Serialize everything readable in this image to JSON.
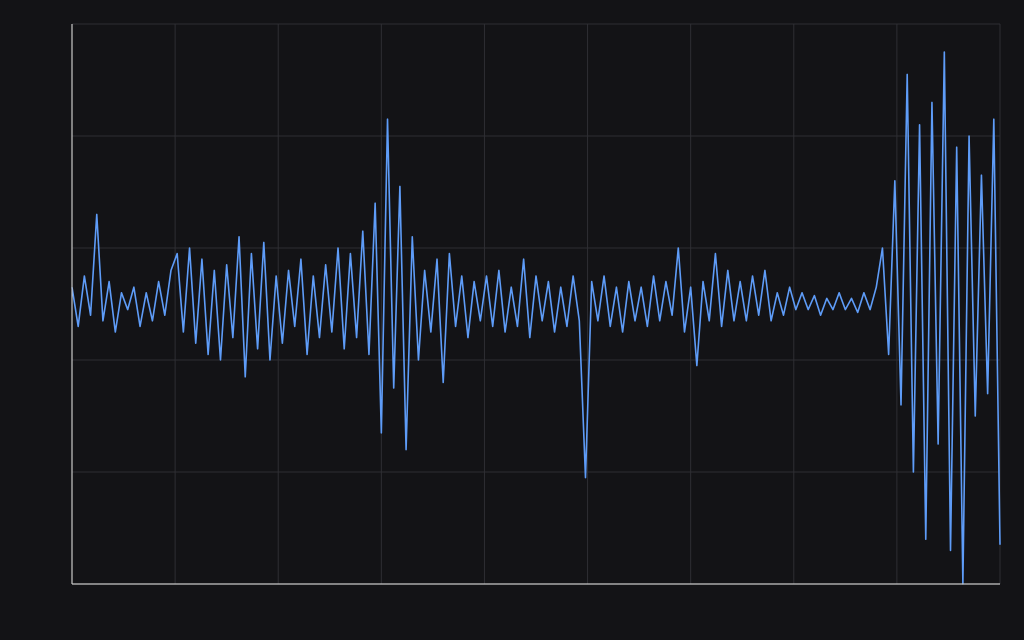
{
  "chart_data": {
    "type": "line",
    "x": [
      0,
      6,
      12,
      18,
      24,
      30,
      36,
      42,
      48,
      54,
      60,
      66,
      72,
      78,
      84,
      90,
      96,
      102,
      108,
      114,
      120,
      126,
      132,
      138,
      144,
      150,
      156,
      162,
      168,
      174,
      180,
      186,
      192,
      198,
      204,
      210,
      216,
      222,
      228,
      234,
      240,
      246,
      252,
      258,
      264,
      270,
      276,
      282,
      288,
      294,
      300,
      306,
      312,
      318,
      324,
      330,
      336,
      342,
      348,
      354,
      360,
      366,
      372,
      378,
      384,
      390,
      396,
      402,
      408,
      414,
      420,
      426,
      432,
      438,
      444,
      450,
      456,
      462,
      468,
      474,
      480,
      486,
      492,
      498,
      504,
      510,
      516,
      522,
      528,
      534,
      540,
      546,
      552,
      558,
      564,
      570,
      576,
      582,
      588,
      594,
      600,
      606,
      612,
      618,
      624,
      630,
      636,
      642,
      648,
      654,
      660,
      666,
      672,
      678,
      684,
      690,
      696,
      702,
      708,
      714,
      720,
      726,
      732,
      738,
      744,
      750,
      756,
      762,
      768,
      774,
      780,
      786,
      792,
      798,
      804,
      810,
      816,
      822,
      828,
      834,
      840,
      846,
      852,
      858,
      864,
      870,
      876,
      882,
      888,
      894,
      900
    ],
    "values": [
      0.3,
      -0.4,
      0.5,
      -0.2,
      1.6,
      -0.3,
      0.4,
      -0.5,
      0.2,
      -0.1,
      0.3,
      -0.4,
      0.2,
      -0.3,
      0.4,
      -0.2,
      0.6,
      0.9,
      -0.5,
      1.0,
      -0.7,
      0.8,
      -0.9,
      0.6,
      -1.0,
      0.7,
      -0.6,
      1.2,
      -1.3,
      0.9,
      -0.8,
      1.1,
      -1.0,
      0.5,
      -0.7,
      0.6,
      -0.4,
      0.8,
      -0.9,
      0.5,
      -0.6,
      0.7,
      -0.5,
      1.0,
      -0.8,
      0.9,
      -0.6,
      1.3,
      -0.9,
      1.8,
      -2.3,
      3.3,
      -1.5,
      2.1,
      -2.6,
      1.2,
      -1.0,
      0.6,
      -0.5,
      0.8,
      -1.4,
      0.9,
      -0.4,
      0.5,
      -0.6,
      0.4,
      -0.3,
      0.5,
      -0.4,
      0.6,
      -0.5,
      0.3,
      -0.4,
      0.8,
      -0.6,
      0.5,
      -0.3,
      0.4,
      -0.5,
      0.3,
      -0.4,
      0.5,
      -0.3,
      -3.1,
      0.4,
      -0.3,
      0.5,
      -0.4,
      0.3,
      -0.5,
      0.4,
      -0.3,
      0.3,
      -0.4,
      0.5,
      -0.3,
      0.4,
      -0.2,
      1.0,
      -0.5,
      0.3,
      -1.1,
      0.4,
      -0.3,
      0.9,
      -0.4,
      0.6,
      -0.3,
      0.4,
      -0.3,
      0.5,
      -0.2,
      0.6,
      -0.3,
      0.2,
      -0.2,
      0.3,
      -0.1,
      0.2,
      -0.1,
      0.15,
      -0.2,
      0.1,
      -0.1,
      0.2,
      -0.1,
      0.1,
      -0.15,
      0.2,
      -0.1,
      0.3,
      1.0,
      -0.9,
      2.2,
      -1.8,
      4.1,
      -3.0,
      3.2,
      -4.2,
      3.6,
      -2.5,
      4.5,
      -4.4,
      2.8,
      -5.0,
      3.0,
      -2.0,
      2.3,
      -1.6,
      3.3,
      -4.3
    ],
    "color": "#5e9cf8",
    "xlim": [
      0,
      900
    ],
    "xticks": [
      0,
      100,
      200,
      300,
      400,
      500,
      600,
      700,
      800,
      900
    ],
    "ylim": [
      -5,
      5
    ],
    "yticks": [
      -5,
      -3,
      -1,
      1,
      3,
      5
    ],
    "grid": true
  }
}
